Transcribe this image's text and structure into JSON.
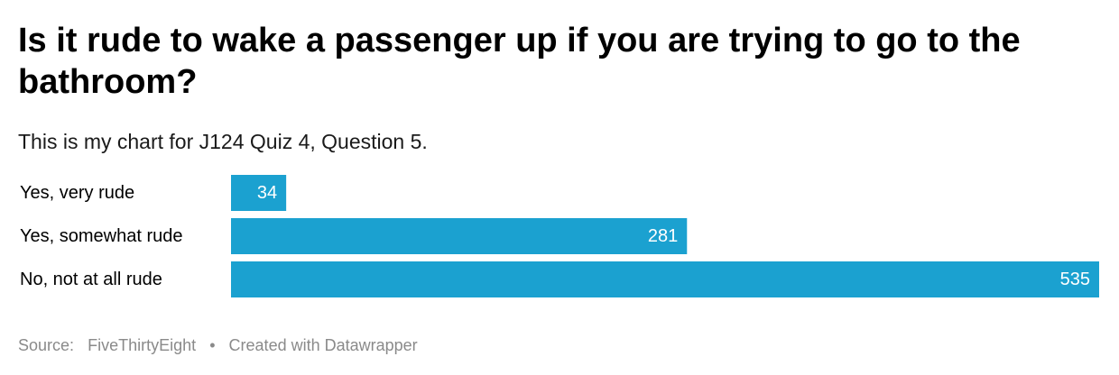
{
  "chart": {
    "title": "Is it rude to wake a passenger up if you are trying to go to the bathroom?",
    "subtitle": "This is my chart for J124 Quiz 4, Question 5.",
    "source_label": "Source:",
    "source": "FiveThirtyEight",
    "separator": "•",
    "credit": "Created with Datawrapper"
  },
  "colors": {
    "bar": "#1ba1d0",
    "bar_label": "#ffffff",
    "category_label": "#000000",
    "footer": "#8a8a8a"
  },
  "chart_data": {
    "type": "bar",
    "orientation": "horizontal",
    "title": "Is it rude to wake a passenger up if you are trying to go to the bathroom?",
    "subtitle": "This is my chart for J124 Quiz 4, Question 5.",
    "categories": [
      "Yes, very rude",
      "Yes, somewhat rude",
      "No, not at all rude"
    ],
    "values": [
      34,
      281,
      535
    ],
    "data_labels": [
      "34",
      "281",
      "535"
    ],
    "xlim": [
      0,
      535
    ],
    "grid": false,
    "legend": "none"
  }
}
